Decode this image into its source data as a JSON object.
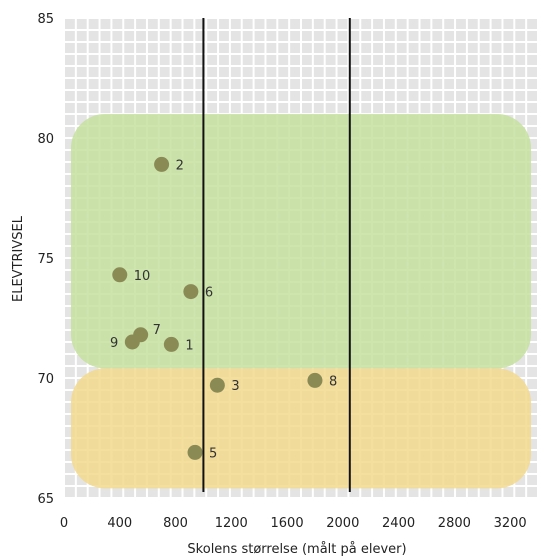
{
  "chart_data": {
    "type": "scatter",
    "xlabel": "Skolens størrelse (målt på elever)",
    "ylabel": "ELEVTRIVSEL",
    "xlim": [
      0,
      3400
    ],
    "ylim": [
      65,
      85
    ],
    "x_ticks": [
      0,
      400,
      800,
      1200,
      1600,
      2000,
      2400,
      2800,
      3200
    ],
    "y_ticks": [
      65,
      70,
      75,
      80,
      85
    ],
    "grid": true,
    "vertical_lines": [
      1000,
      2050
    ],
    "bands": [
      {
        "name": "green",
        "x_range": [
          50,
          3350
        ],
        "y_range": [
          70.4,
          81
        ],
        "color": "#c6e0a0"
      },
      {
        "name": "yellow",
        "x_range": [
          50,
          3350
        ],
        "y_range": [
          65.4,
          70.4
        ],
        "color": "#f3d98e"
      }
    ],
    "point_color": "#8a8a55",
    "points": [
      {
        "label": "1",
        "x": 770,
        "y": 71.4
      },
      {
        "label": "2",
        "x": 700,
        "y": 78.9
      },
      {
        "label": "3",
        "x": 1100,
        "y": 69.7
      },
      {
        "label": "5",
        "x": 940,
        "y": 66.9
      },
      {
        "label": "6",
        "x": 910,
        "y": 73.6
      },
      {
        "label": "7",
        "x": 550,
        "y": 71.8
      },
      {
        "label": "8",
        "x": 1800,
        "y": 69.9
      },
      {
        "label": "9",
        "x": 490,
        "y": 71.5
      },
      {
        "label": "10",
        "x": 400,
        "y": 74.3
      }
    ]
  }
}
